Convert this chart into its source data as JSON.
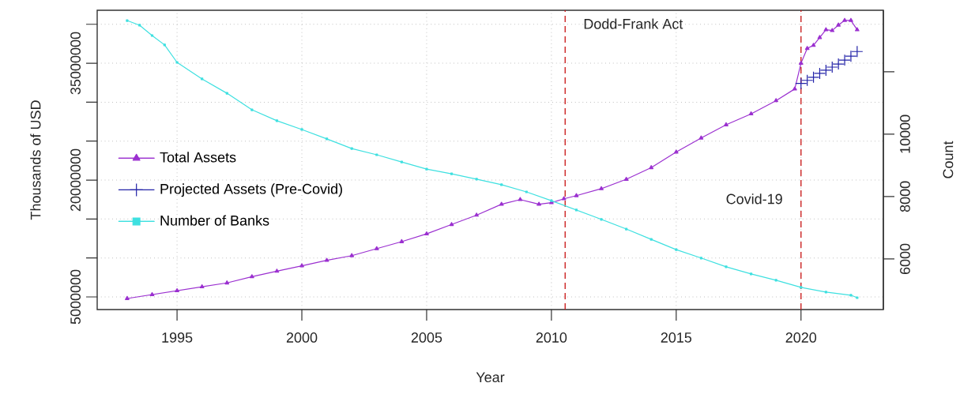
{
  "chart_data": {
    "type": "line",
    "xlabel": "Year",
    "ylabel": "Thousands of USD",
    "y2label": "Count",
    "xlim": [
      1991.8,
      2023.3
    ],
    "xticks": [
      1995,
      2000,
      2005,
      2010,
      2015,
      2020
    ],
    "ylim": [
      3380000,
      41800000
    ],
    "yticks": [
      5000000,
      {
        "value": 10000000,
        "label": null
      },
      {
        "value": 15000000,
        "label": null
      },
      20000000,
      {
        "value": 25000000,
        "label": null
      },
      {
        "value": 30000000,
        "label": null
      },
      35000000,
      {
        "value": 40000000,
        "label": null
      }
    ],
    "y2lim": [
      4380,
      13970
    ],
    "y2ticks": [
      6000,
      8000,
      10000,
      {
        "value": 12000,
        "label": null
      }
    ],
    "grid": true,
    "legend": "left",
    "series": [
      {
        "name": "Total Assets",
        "color": "#9b30d0",
        "marker": "triangle",
        "x": [
          1993,
          1994,
          1995,
          1996,
          1997,
          1998,
          1999,
          2000,
          2001,
          2002,
          2003,
          2004,
          2005,
          2006,
          2007,
          2008,
          2008.75,
          2009.5,
          2010,
          2010.5,
          2011,
          2012,
          2013,
          2014,
          2015,
          2016,
          2017,
          2018,
          2019,
          2019.75,
          2020,
          2020.25,
          2020.5,
          2020.75,
          2021,
          2021.25,
          2021.5,
          2021.75,
          2022,
          2022.25
        ],
        "values": [
          4800000,
          5300000,
          5800000,
          6300000,
          6800000,
          7600000,
          8300000,
          9000000,
          9700000,
          10300000,
          11200000,
          12100000,
          13100000,
          14300000,
          15500000,
          16900000,
          17500000,
          16900000,
          17100000,
          17600000,
          18000000,
          18900000,
          20100000,
          21600000,
          23600000,
          25400000,
          27100000,
          28500000,
          30200000,
          31700000,
          35000000,
          36900000,
          37300000,
          38300000,
          39300000,
          39200000,
          39900000,
          40500000,
          40500000,
          39300000
        ]
      },
      {
        "name": "Projected Assets (Pre-Covid)",
        "color": "#2323a8",
        "type": "scatter",
        "marker": "cross",
        "x": [
          2020,
          2020.25,
          2020.5,
          2020.75,
          2021,
          2021.25,
          2021.5,
          2021.75,
          2022,
          2022.25
        ],
        "values": [
          32400000,
          32800000,
          33200000,
          33700000,
          34100000,
          34500000,
          34900000,
          35400000,
          35900000,
          36500000
        ]
      },
      {
        "name": "Number of Banks",
        "color": "#3ee0e0",
        "marker": "square",
        "axis": "y2",
        "x": [
          1993,
          1993.5,
          1994,
          1994.5,
          1995,
          1996,
          1997,
          1998,
          1999,
          2000,
          2001,
          2002,
          2003,
          2004,
          2005,
          2006,
          2007,
          2008,
          2009,
          2010,
          2011,
          2012,
          2013,
          2014,
          2015,
          2016,
          2017,
          2018,
          2019,
          2020,
          2021,
          2022,
          2022.25
        ],
        "values": [
          13640,
          13490,
          13160,
          12860,
          12300,
          11770,
          11310,
          10780,
          10430,
          10150,
          9850,
          9540,
          9340,
          9110,
          8880,
          8730,
          8560,
          8380,
          8150,
          7870,
          7570,
          7270,
          6960,
          6630,
          6300,
          6030,
          5750,
          5520,
          5320,
          5090,
          4940,
          4840,
          4760
        ]
      }
    ],
    "ref_lines": [
      {
        "axis": "x",
        "value": 2010.55,
        "label": "Dodd-Frank Act",
        "color": "#cc2222",
        "line_style": "dashed"
      },
      {
        "axis": "x",
        "value": 2020,
        "label": "Covid-19",
        "color": "#cc2222",
        "line_style": "dashed"
      }
    ]
  }
}
